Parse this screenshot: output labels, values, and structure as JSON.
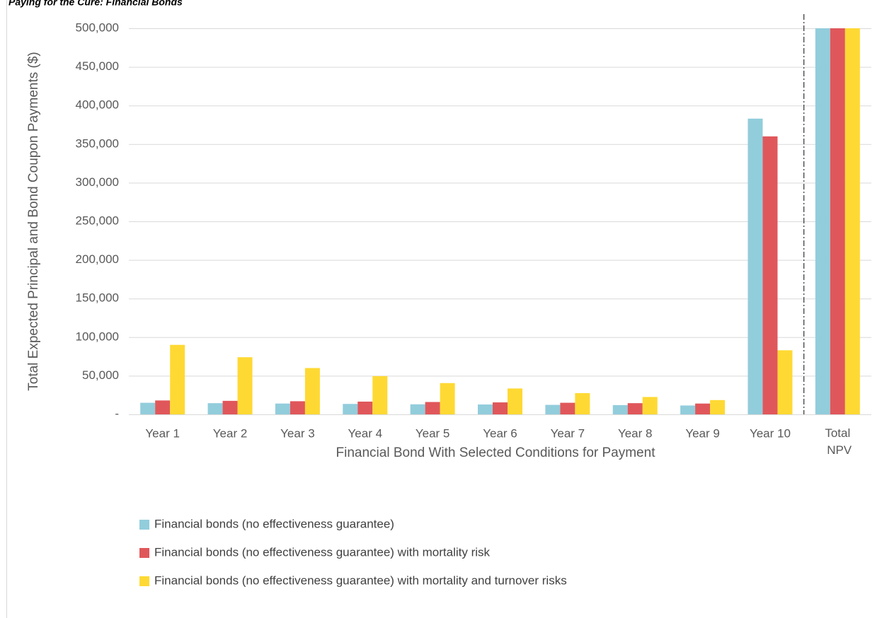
{
  "chart_data": {
    "type": "bar",
    "title": "Paying for the Cure: Financial Bonds",
    "x_label": "Financial Bond With Selected Conditions for Payment",
    "y_label": "Total Expected Principal and Bond Coupon Payments ($)",
    "categories": [
      "Year 1",
      "Year 2",
      "Year 3",
      "Year 4",
      "Year 5",
      "Year 6",
      "Year 7",
      "Year 8",
      "Year 9",
      "Year 10",
      "Total NPV"
    ],
    "series": [
      {
        "name": "Financial bonds (no effectiveness guarantee)",
        "color": "#92cddc",
        "values": [
          15000,
          14500,
          14000,
          13500,
          13000,
          12800,
          12300,
          12000,
          11500,
          383000,
          500000
        ]
      },
      {
        "name": "Financial bonds (no effectiveness guarantee) with mortality risk",
        "color": "#e0575b",
        "values": [
          18000,
          17500,
          17000,
          16500,
          16000,
          15500,
          15000,
          14500,
          14000,
          360000,
          500000
        ]
      },
      {
        "name": "Financial bonds (no effectiveness guarantee) with mortality and turnover risks",
        "color": "#ffd933",
        "values": [
          90000,
          74000,
          60000,
          49500,
          40500,
          33500,
          27500,
          22500,
          18500,
          83000,
          500000
        ]
      }
    ],
    "ylim": [
      0,
      500000
    ],
    "yticks": [
      {
        "value": 0,
        "label": "-"
      },
      {
        "value": 50000,
        "label": "50,000"
      },
      {
        "value": 100000,
        "label": "100,000"
      },
      {
        "value": 150000,
        "label": "150,000"
      },
      {
        "value": 200000,
        "label": "200,000"
      },
      {
        "value": 250000,
        "label": "250,000"
      },
      {
        "value": 300000,
        "label": "300,000"
      },
      {
        "value": 350000,
        "label": "350,000"
      },
      {
        "value": 400000,
        "label": "400,000"
      },
      {
        "value": 450000,
        "label": "450,000"
      },
      {
        "value": 500000,
        "label": "500,000"
      }
    ],
    "grid": true
  }
}
